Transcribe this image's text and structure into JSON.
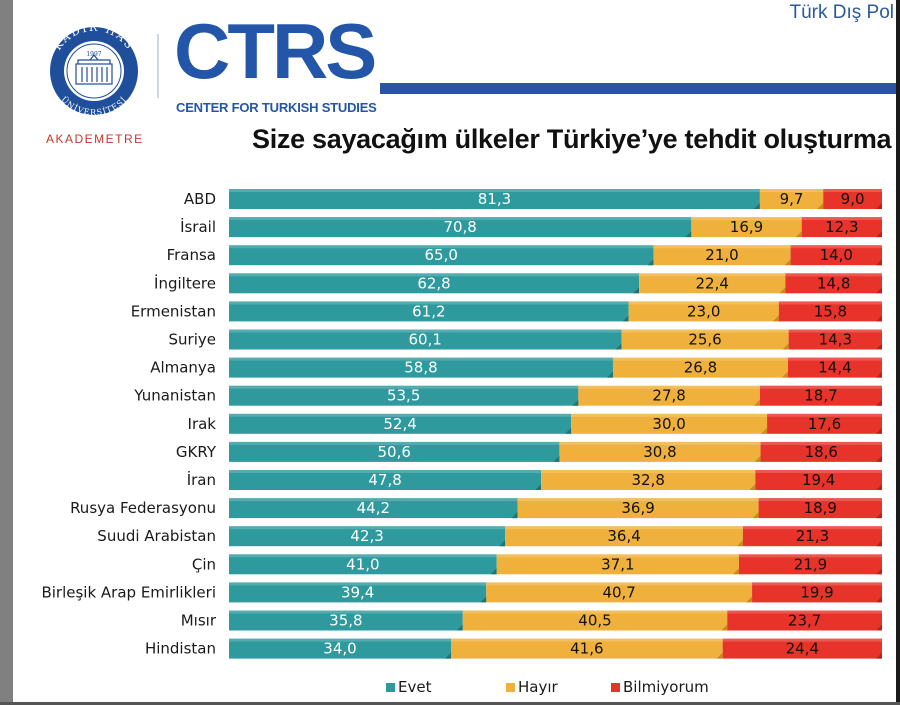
{
  "header": {
    "top_caption": "Türk Dış Pol",
    "ctrs_letters": "CTRS",
    "ctrs_subtitle": "CENTER FOR TURKISH STUDIES",
    "akademetre": "AKADEMETRE",
    "seal_top": "KADIR HAS",
    "seal_year": "1997",
    "seal_bottom": "ÜNİVERSİTESİ"
  },
  "colors": {
    "evet": "#2f9a9e",
    "hayir": "#f0b13c",
    "bilmiyorum": "#e8332a",
    "brand_blue": "#2356a8"
  },
  "chart_data": {
    "type": "bar",
    "orientation": "horizontal",
    "stacked": true,
    "percent": true,
    "title": "Size sayacağım ülkeler Türkiye’ye tehdit oluşturma",
    "categories": [
      "ABD",
      "İsrail",
      "Fransa",
      "İngiltere",
      "Ermenistan",
      "Suriye",
      "Almanya",
      "Yunanistan",
      "Irak",
      "GKRY",
      "İran",
      "Rusya Federasyonu",
      "Suudi Arabistan",
      "Çin",
      "Birleşik Arap Emirlikleri",
      "Mısır",
      "Hindistan"
    ],
    "series": [
      {
        "name": "Evet",
        "values": [
          81.3,
          70.8,
          65.0,
          62.8,
          61.2,
          60.1,
          58.8,
          53.5,
          52.4,
          50.6,
          47.8,
          44.2,
          42.3,
          41.0,
          39.4,
          35.8,
          34.0
        ],
        "labels": [
          "81,3",
          "70,8",
          "65,0",
          "62,8",
          "61,2",
          "60,1",
          "58,8",
          "53,5",
          "52,4",
          "50,6",
          "47,8",
          "44,2",
          "42,3",
          "41,0",
          "39,4",
          "35,8",
          "34,0"
        ]
      },
      {
        "name": "Hayır",
        "values": [
          9.7,
          16.9,
          21.0,
          22.4,
          23.0,
          25.6,
          26.8,
          27.8,
          30.0,
          30.8,
          32.8,
          36.9,
          36.4,
          37.1,
          40.7,
          40.5,
          41.6
        ],
        "labels": [
          "9,7",
          "16,9",
          "21,0",
          "22,4",
          "23,0",
          "25,6",
          "26,8",
          "27,8",
          "30,0",
          "30,8",
          "32,8",
          "36,9",
          "36,4",
          "37,1",
          "40,7",
          "40,5",
          "41,6"
        ]
      },
      {
        "name": "Bilmiyorum",
        "values": [
          9.0,
          12.3,
          14.0,
          14.8,
          15.8,
          14.3,
          14.4,
          18.7,
          17.6,
          18.6,
          19.4,
          18.9,
          21.3,
          21.9,
          19.9,
          23.7,
          24.4
        ],
        "labels": [
          "9,0",
          "12,3",
          "14,0",
          "14,8",
          "15,8",
          "14,3",
          "14,4",
          "18,7",
          "17,6",
          "18,6",
          "19,4",
          "18,9",
          "21,3",
          "21,9",
          "19,9",
          "23,7",
          "24,4"
        ]
      }
    ],
    "xlim": [
      0,
      100
    ],
    "legend_position": "bottom",
    "grid": false
  }
}
